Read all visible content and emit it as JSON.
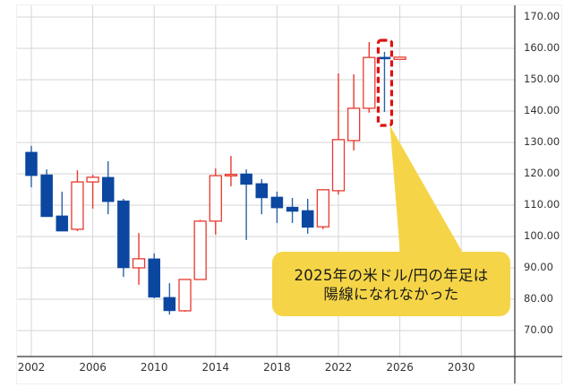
{
  "chart_data": {
    "type": "candlestick",
    "title": "",
    "xlabel": "",
    "ylabel": "",
    "ylim": [
      65,
      172
    ],
    "xlim": [
      2002,
      2032
    ],
    "grid": true,
    "y_axis_position": "right",
    "y_ticks": [
      "170.00",
      "160.00",
      "150.00",
      "140.00",
      "130.00",
      "120.00",
      "110.00",
      "100.00",
      "90.00",
      "80.00",
      "70.00"
    ],
    "x_ticks": [
      "2002",
      "2006",
      "2010",
      "2014",
      "2018",
      "2022",
      "2026",
      "2030"
    ],
    "colors": {
      "up": "#e8392f",
      "down": "#0b47a0",
      "grid": "#d6d6d6",
      "axis": "#333333",
      "callout": "#f5d547",
      "highlight_box": "#e01010"
    },
    "candles": [
      {
        "year": 2002,
        "open": 126.9,
        "high": 128.9,
        "low": 115.7,
        "close": 119.4
      },
      {
        "year": 2003,
        "open": 119.7,
        "high": 121.4,
        "low": 106.3,
        "close": 106.3
      },
      {
        "year": 2004,
        "open": 106.6,
        "high": 114.3,
        "low": 101.7,
        "close": 101.7
      },
      {
        "year": 2005,
        "open": 102.3,
        "high": 121.1,
        "low": 101.7,
        "close": 117.4
      },
      {
        "year": 2006,
        "open": 117.4,
        "high": 119.7,
        "low": 108.9,
        "close": 118.9
      },
      {
        "year": 2007,
        "open": 118.9,
        "high": 124.0,
        "low": 107.1,
        "close": 111.1
      },
      {
        "year": 2008,
        "open": 111.4,
        "high": 112.0,
        "low": 87.1,
        "close": 90.0
      },
      {
        "year": 2009,
        "open": 90.0,
        "high": 101.1,
        "low": 84.6,
        "close": 92.9
      },
      {
        "year": 2010,
        "open": 92.9,
        "high": 94.6,
        "low": 80.3,
        "close": 80.6
      },
      {
        "year": 2011,
        "open": 80.6,
        "high": 85.1,
        "low": 75.1,
        "close": 76.3
      },
      {
        "year": 2012,
        "open": 76.3,
        "high": 86.3,
        "low": 76.0,
        "close": 86.3
      },
      {
        "year": 2013,
        "open": 86.3,
        "high": 105.3,
        "low": 86.3,
        "close": 104.9
      },
      {
        "year": 2014,
        "open": 104.9,
        "high": 121.7,
        "low": 100.6,
        "close": 119.4
      },
      {
        "year": 2015,
        "open": 119.7,
        "high": 125.7,
        "low": 116.0,
        "close": 119.8
      },
      {
        "year": 2016,
        "open": 120.0,
        "high": 121.4,
        "low": 98.9,
        "close": 116.6
      },
      {
        "year": 2017,
        "open": 116.9,
        "high": 118.3,
        "low": 107.1,
        "close": 112.3
      },
      {
        "year": 2018,
        "open": 112.6,
        "high": 114.3,
        "low": 104.3,
        "close": 109.1
      },
      {
        "year": 2019,
        "open": 109.4,
        "high": 112.3,
        "low": 104.3,
        "close": 108.0
      },
      {
        "year": 2020,
        "open": 108.3,
        "high": 112.0,
        "low": 100.9,
        "close": 102.9
      },
      {
        "year": 2021,
        "open": 103.1,
        "high": 115.1,
        "low": 102.3,
        "close": 114.9
      },
      {
        "year": 2022,
        "open": 114.6,
        "high": 152.0,
        "low": 113.4,
        "close": 130.9
      },
      {
        "year": 2023,
        "open": 130.6,
        "high": 151.7,
        "low": 127.4,
        "close": 140.9
      },
      {
        "year": 2024,
        "open": 140.9,
        "high": 162.0,
        "low": 139.5,
        "close": 157.1
      },
      {
        "year": 2025,
        "open": 157.2,
        "high": 158.9,
        "low": 139.7,
        "close": 156.6
      },
      {
        "year": 2026,
        "open": 156.5,
        "high": 157.3,
        "low": 156.4,
        "close": 157.2
      }
    ],
    "annotations": [
      {
        "type": "dashed-box",
        "target_year": 2025,
        "color": "#e01010"
      },
      {
        "type": "callout",
        "target_year": 2025,
        "text_lines": [
          "2025年の米ドル/円の年足は",
          "陽線になれなかった"
        ],
        "color": "#f5d547"
      }
    ]
  },
  "callout": {
    "line1": "2025年の米ドル/円の年足は",
    "line2": "陽線になれなかった"
  }
}
